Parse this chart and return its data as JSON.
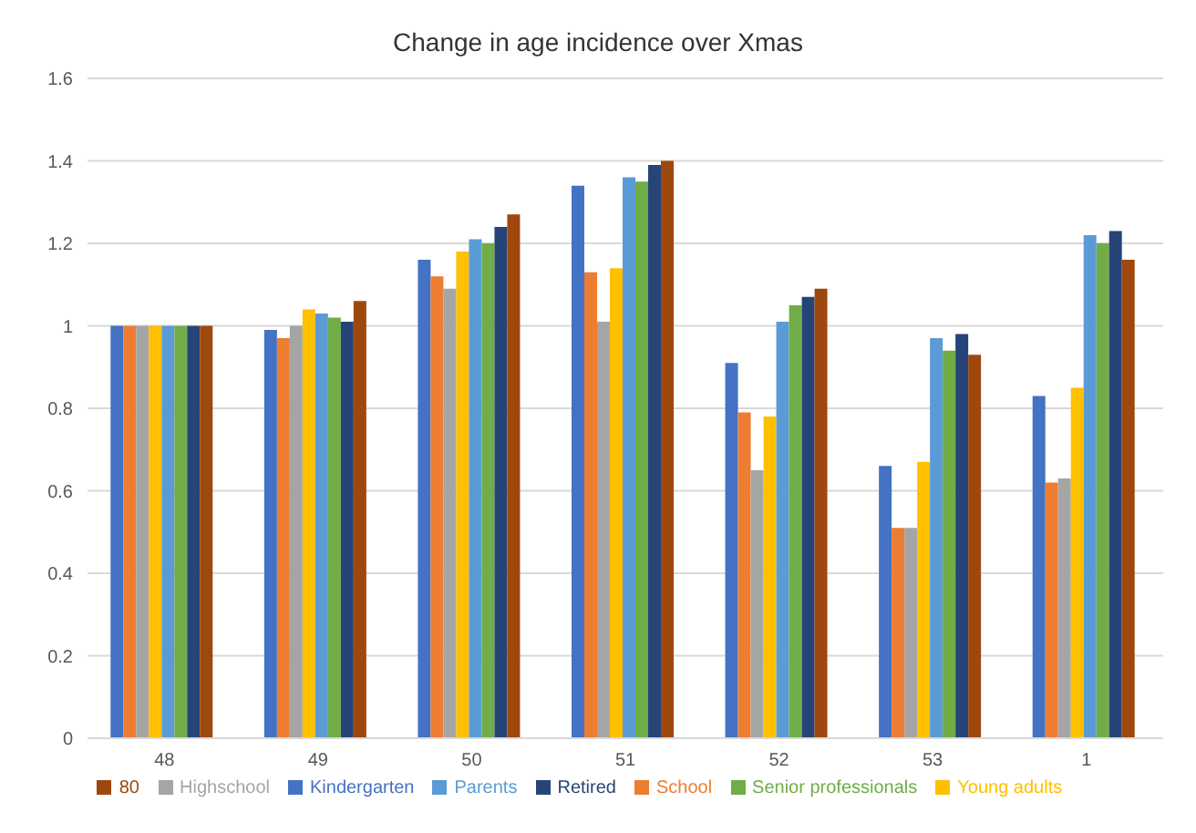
{
  "chart_data": {
    "type": "bar",
    "title": "Change in age incidence over Xmas",
    "categories": [
      "48",
      "49",
      "50",
      "51",
      "52",
      "53",
      "1"
    ],
    "series": [
      {
        "name": "Kindergarten",
        "color": "#4472c4",
        "values": [
          1,
          0.99,
          1.16,
          1.34,
          0.91,
          0.66,
          0.83
        ]
      },
      {
        "name": "School",
        "color": "#ed7d31",
        "values": [
          1,
          0.97,
          1.12,
          1.13,
          0.79,
          0.51,
          0.62
        ]
      },
      {
        "name": "Highschool",
        "color": "#a5a5a5",
        "values": [
          1,
          1,
          1.09,
          1.01,
          0.65,
          0.51,
          0.63
        ]
      },
      {
        "name": "Young adults",
        "color": "#ffc000",
        "values": [
          1,
          1.04,
          1.18,
          1.14,
          0.78,
          0.67,
          0.85
        ]
      },
      {
        "name": "Parents",
        "color": "#5b9bd5",
        "values": [
          1,
          1.03,
          1.21,
          1.36,
          1.01,
          0.97,
          1.22
        ]
      },
      {
        "name": "Senior professionals",
        "color": "#70ad47",
        "values": [
          1,
          1.02,
          1.2,
          1.35,
          1.05,
          0.94,
          1.2
        ]
      },
      {
        "name": "Retired",
        "color": "#264478",
        "values": [
          1,
          1.01,
          1.24,
          1.39,
          1.07,
          0.98,
          1.23
        ]
      },
      {
        "name": "80",
        "color": "#9e480e",
        "values": [
          1,
          1.06,
          1.27,
          1.4,
          1.09,
          0.93,
          1.16
        ]
      }
    ],
    "ylim": [
      0,
      1.6
    ],
    "yticks": [
      0,
      0.2,
      0.4,
      0.6,
      0.8,
      1,
      1.2,
      1.4,
      1.6
    ],
    "grid": "y",
    "legend": "bottom"
  }
}
